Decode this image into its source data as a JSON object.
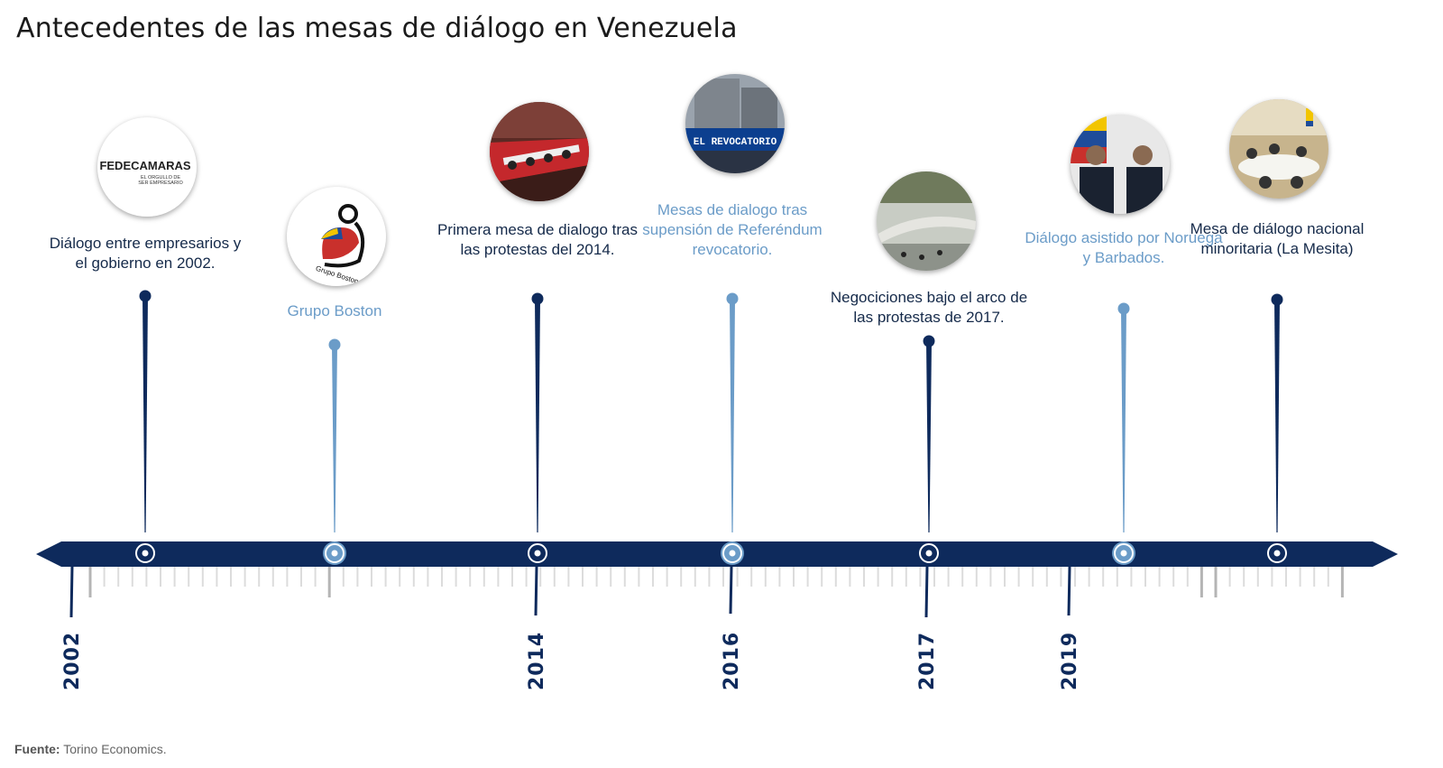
{
  "title": "Antecedentes de las mesas de diálogo en Venezuela",
  "source_label": "Fuente:",
  "source_text": "Torino Economics.",
  "colors": {
    "dark": "#0e2a5c",
    "light": "#6b9cc8",
    "gray": "#c8c8c8"
  },
  "years": [
    "2002",
    "2014",
    "2016",
    "2017",
    "2019"
  ],
  "events": [
    {
      "label": "Diálogo entre empresarios y el gobierno en 2002.",
      "tone": "dark",
      "image": "fedecamaras-logo",
      "logo_text": "FEDECAMARAS",
      "logo_sub": "EL ORGULLO DE SER EMPRESARIO"
    },
    {
      "label": "Grupo Boston",
      "tone": "light",
      "image": "grupo-boston-logo",
      "logo_text": "Grupo Boston"
    },
    {
      "label": "Primera mesa de dialogo tras las protestas del 2014.",
      "tone": "dark",
      "image": "meeting-photo"
    },
    {
      "label": "Mesas de dialogo tras supensión de Referéndum revocatorio.",
      "tone": "light",
      "image": "protest-banner-photo",
      "banner_text": "EL REVOCATORIO"
    },
    {
      "label": "Negociciones bajo el arco de las protestas de 2017.",
      "tone": "dark",
      "image": "protest-highway-photo"
    },
    {
      "label": "Diálogo asistido por Noruega y Barbados.",
      "tone": "light",
      "image": "officials-photo"
    },
    {
      "label": "Mesa de diálogo nacional minoritaria (La Mesita)",
      "tone": "dark",
      "image": "round-table-photo"
    }
  ]
}
